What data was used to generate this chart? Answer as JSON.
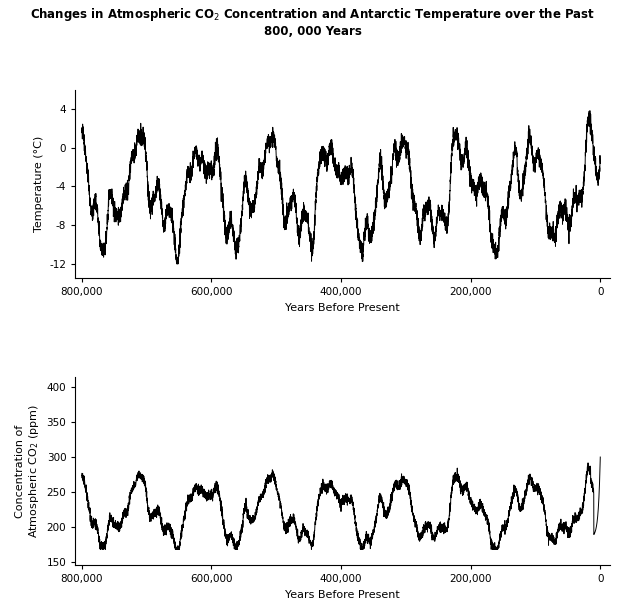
{
  "title": "Changes in Atmospheric CO$_2$ Concentration and Antarctic Temperature over the Past\n800, 000 Years",
  "xlabel": "Years Before Present",
  "ylabel_top": "Temperature (°C)",
  "ylabel_bottom_line1": "Concentration of",
  "ylabel_bottom_line2": "Atmospheric CO$_2$ (ppm)",
  "temp_yticks": [
    -12,
    -8,
    -4,
    0,
    4
  ],
  "co2_yticks": [
    150,
    200,
    250,
    300,
    350,
    400
  ],
  "xticks": [
    800000,
    600000,
    400000,
    200000,
    0
  ],
  "xlim": [
    810000,
    -15000
  ],
  "temp_ylim": [
    -13.5,
    6
  ],
  "co2_ylim": [
    145,
    415
  ],
  "line_color": "#000000",
  "line_width": 0.7,
  "background_color": "#ffffff",
  "title_fontsize": 8.5,
  "axis_label_fontsize": 8,
  "tick_fontsize": 7.5
}
